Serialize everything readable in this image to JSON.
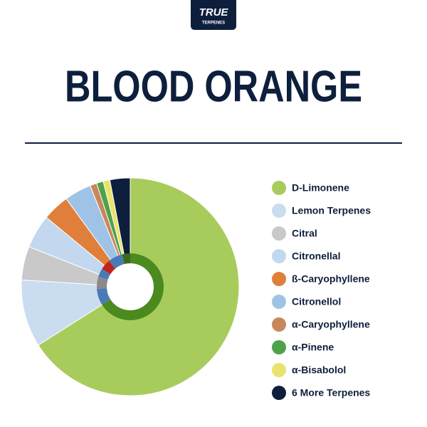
{
  "logo": {
    "line1": "TRUE",
    "line2": "TERPENES"
  },
  "title": "BLOOD ORANGE",
  "chart_data": {
    "type": "pie",
    "categories": [
      "D-Limonene",
      "Lemon Terpenes",
      "Citral",
      "Citronellal",
      "ß-Caryophyllene",
      "Citronellol",
      "α-Caryophyllene",
      "α-Pinene",
      "α-Bisabolol",
      "6 More Terpenes"
    ],
    "values": [
      66,
      10,
      5,
      5,
      4,
      4,
      1,
      1,
      1,
      3
    ],
    "colors": [
      "#a8cc5c",
      "#c9dcf0",
      "#c9c9c9",
      "#c3d8ef",
      "#e07f3a",
      "#9fc3e6",
      "#c8875a",
      "#4ea24a",
      "#e9e26e",
      "#0d1f3c"
    ],
    "inner_values": [
      66,
      8,
      6,
      4,
      5,
      7,
      4
    ],
    "inner_colors": [
      "#4a8a1e",
      "#4a7ab8",
      "#8a8a8a",
      "#4a7ab8",
      "#c0221e",
      "#4a7ab8",
      "#3c6a1a"
    ]
  }
}
